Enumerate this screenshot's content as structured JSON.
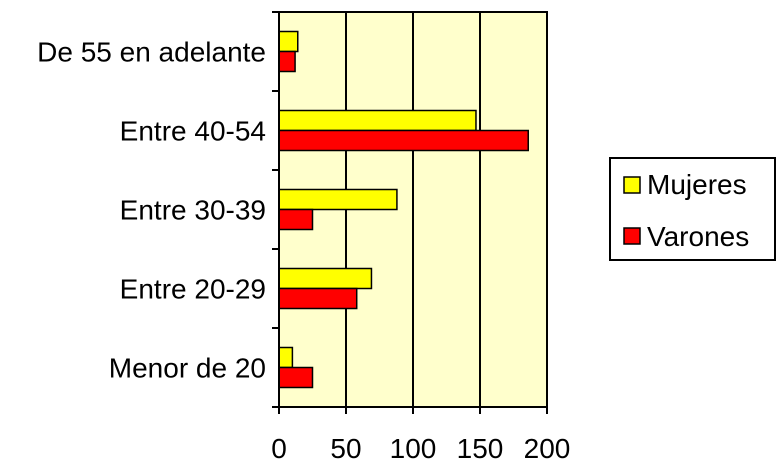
{
  "chart_data": {
    "type": "bar",
    "orientation": "horizontal",
    "title": "",
    "xlabel": "",
    "ylabel": "",
    "categories": [
      "Menor de 20",
      "Entre 20-29",
      "Entre 30-39",
      "Entre 40-54",
      "De 55 en adelante"
    ],
    "series": [
      {
        "name": "Mujeres",
        "color": "#ffff00",
        "values": [
          10,
          69,
          88,
          147,
          14
        ]
      },
      {
        "name": "Varones",
        "color": "#ff0000",
        "values": [
          25,
          58,
          25,
          186,
          12
        ]
      }
    ],
    "xlim": [
      0,
      200
    ],
    "xticks": [
      0,
      50,
      100,
      150,
      200
    ],
    "grid": "vertical",
    "plot_background": "#ffffcc",
    "legend_position": "right"
  }
}
